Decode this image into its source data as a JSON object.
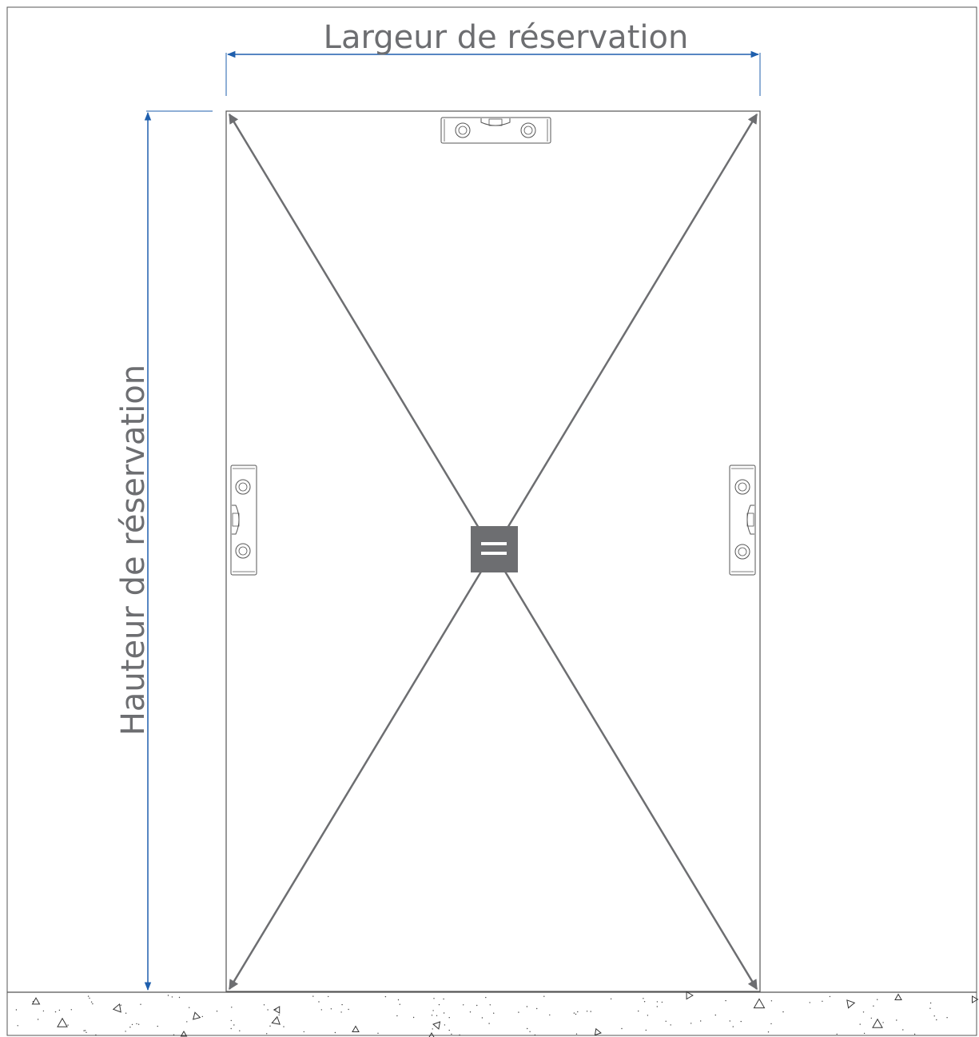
{
  "diagram": {
    "width_label": "Largeur de réservation",
    "height_label": "Hauteur de réservation",
    "equal_sign": "=",
    "colors": {
      "dimension_arrow": "#1f5fad",
      "diagonal": "#6d6e71",
      "text": "#6d6e71",
      "badge": "#6d6e71",
      "outline": "#555555"
    },
    "icons": [
      "spirit-level-icon",
      "spirit-level-icon",
      "spirit-level-icon",
      "equal-icon"
    ]
  }
}
